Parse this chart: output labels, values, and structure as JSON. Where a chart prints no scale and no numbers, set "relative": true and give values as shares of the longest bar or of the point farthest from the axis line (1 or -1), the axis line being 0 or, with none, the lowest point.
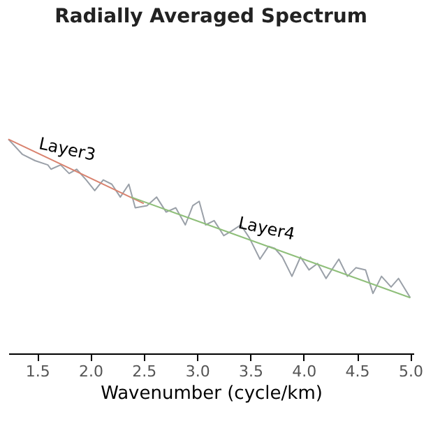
{
  "chart_data": {
    "type": "line",
    "title": "Radially Averaged Spectrum",
    "xlabel": "Wavenumber (cycle/km)",
    "relative": true,
    "xlim": [
      1.23,
      5.03
    ],
    "xticks": [
      {
        "value": 1.5,
        "label": "1.5"
      },
      {
        "value": 2.0,
        "label": "2.0"
      },
      {
        "value": 2.5,
        "label": "2.5"
      },
      {
        "value": 3.0,
        "label": "3.0"
      },
      {
        "value": 3.5,
        "label": "3.5"
      },
      {
        "value": 4.0,
        "label": "4.0"
      },
      {
        "value": 4.5,
        "label": "4.5"
      },
      {
        "value": 5.0,
        "label": "5.0"
      }
    ],
    "grid": false,
    "series": [
      {
        "color": "#9aa0a8",
        "x": [
          1.23,
          1.36,
          1.48,
          1.6,
          1.63,
          1.72,
          1.8,
          1.87,
          1.96,
          2.04,
          2.12,
          2.2,
          2.28,
          2.36,
          2.42,
          2.53,
          2.62,
          2.71,
          2.8,
          2.89,
          2.96,
          3.02,
          3.08,
          3.16,
          3.25,
          3.32,
          3.41,
          3.49,
          3.59,
          3.67,
          3.73,
          3.8,
          3.89,
          3.97,
          4.05,
          4.13,
          4.21,
          4.33,
          4.41,
          4.49,
          4.58,
          4.65,
          4.73,
          4.82,
          4.89,
          5.0
        ],
        "values": [
          1.0,
          0.93,
          0.9,
          0.88,
          0.86,
          0.88,
          0.84,
          0.86,
          0.81,
          0.76,
          0.81,
          0.79,
          0.73,
          0.79,
          0.68,
          0.69,
          0.73,
          0.66,
          0.68,
          0.6,
          0.69,
          0.71,
          0.6,
          0.62,
          0.55,
          0.57,
          0.6,
          0.54,
          0.44,
          0.5,
          0.49,
          0.45,
          0.36,
          0.45,
          0.39,
          0.42,
          0.35,
          0.44,
          0.36,
          0.4,
          0.39,
          0.28,
          0.36,
          0.31,
          0.35,
          0.26
        ]
      },
      {
        "color": "#d9826e",
        "x": [
          1.23,
          2.5
        ],
        "values": [
          1.0,
          0.7
        ]
      },
      {
        "color": "#8fbf7a",
        "x": [
          2.38,
          5.0
        ],
        "values": [
          0.73,
          0.26
        ]
      }
    ],
    "annotations": [
      {
        "text": "Layer3",
        "x": 1.75,
        "y": 0.877
      },
      {
        "text": "Layer4",
        "x": 3.62,
        "y": 0.507
      }
    ]
  }
}
